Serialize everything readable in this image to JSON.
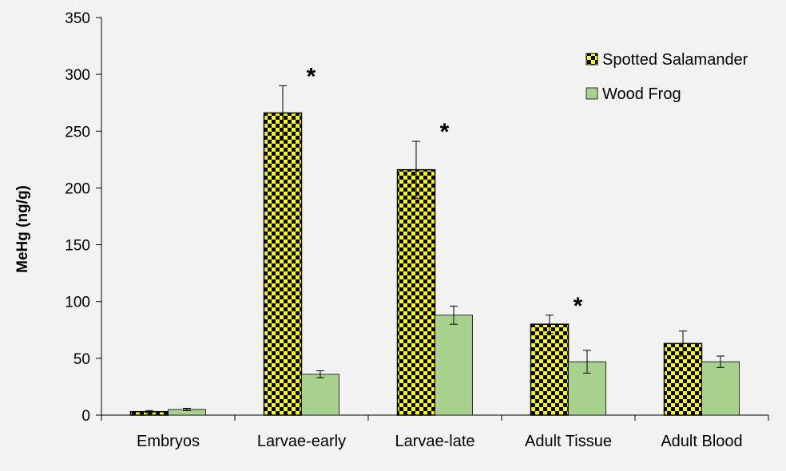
{
  "chart_data": {
    "type": "bar",
    "categories": [
      "Embryos",
      "Larvae-early",
      "Larvae-late",
      "Adult Tissue",
      "Adult Blood"
    ],
    "series": [
      {
        "name": "Spotted Salamander",
        "values": [
          3,
          266,
          216,
          80,
          63
        ],
        "errors": [
          1,
          24,
          25,
          8,
          11
        ],
        "color": "#ffff00",
        "pattern_color": "#000000",
        "significance": [
          "",
          "*",
          "*",
          "*",
          ""
        ]
      },
      {
        "name": "Wood Frog",
        "values": [
          5,
          36,
          88,
          47,
          47
        ],
        "errors": [
          1,
          3,
          8,
          10,
          5
        ],
        "color": "#a9d18e"
      }
    ],
    "title": "",
    "xlabel": "",
    "ylabel": "MeHg (ng/g)",
    "ylim": [
      0,
      350
    ],
    "yticks": [
      0,
      50,
      100,
      150,
      200,
      250,
      300,
      350
    ],
    "grid": false,
    "legend_position": "top-right"
  }
}
